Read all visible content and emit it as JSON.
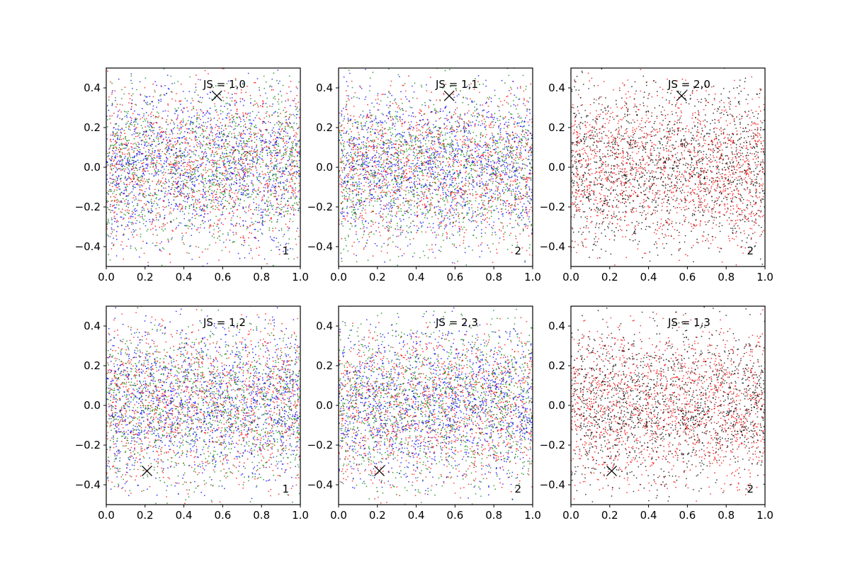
{
  "figure": {
    "background": "#ffffff",
    "colors": {
      "red": "#ff0000",
      "green": "#008000",
      "blue": "#0000ff",
      "black": "#000000"
    }
  },
  "chart_data": [
    {
      "type": "scatter",
      "title": "JS = 1,0",
      "corner_label": "1",
      "xlim": [
        0.0,
        1.0
      ],
      "ylim": [
        -0.5,
        0.5
      ],
      "x_ticks": [
        "0.0",
        "0.2",
        "0.4",
        "0.6",
        "0.8",
        "1.0"
      ],
      "y_ticks": [
        "−0.4",
        "−0.2",
        "0.0",
        "0.2",
        "0.4"
      ],
      "x_tick_values": [
        0.0,
        0.2,
        0.4,
        0.6,
        0.8,
        1.0
      ],
      "y_tick_values": [
        -0.4,
        -0.2,
        0.0,
        0.2,
        0.4
      ],
      "marker_x": {
        "x": 0.57,
        "y": 0.36
      },
      "series_colors": [
        "#ff0000",
        "#008000",
        "#0000ff"
      ],
      "points_per_series": 1300,
      "seed": 11
    },
    {
      "type": "scatter",
      "title": "JS = 1,1",
      "corner_label": "2",
      "xlim": [
        0.0,
        1.0
      ],
      "ylim": [
        -0.5,
        0.5
      ],
      "x_ticks": [
        "0.0",
        "0.2",
        "0.4",
        "0.6",
        "0.8",
        "1.0"
      ],
      "y_ticks": [
        "−0.4",
        "−0.2",
        "0.0",
        "0.2",
        "0.4"
      ],
      "x_tick_values": [
        0.0,
        0.2,
        0.4,
        0.6,
        0.8,
        1.0
      ],
      "y_tick_values": [
        -0.4,
        -0.2,
        0.0,
        0.2,
        0.4
      ],
      "marker_x": {
        "x": 0.57,
        "y": 0.36
      },
      "series_colors": [
        "#ff0000",
        "#008000",
        "#0000ff"
      ],
      "points_per_series": 1300,
      "seed": 23
    },
    {
      "type": "scatter",
      "title": "JS = 2,0",
      "corner_label": "2",
      "xlim": [
        0.0,
        1.0
      ],
      "ylim": [
        -0.5,
        0.5
      ],
      "x_ticks": [
        "0.0",
        "0.2",
        "0.4",
        "0.6",
        "0.8",
        "1.0"
      ],
      "y_ticks": [
        "−0.4",
        "−0.2",
        "0.0",
        "0.2",
        "0.4"
      ],
      "x_tick_values": [
        0.0,
        0.2,
        0.4,
        0.6,
        0.8,
        1.0
      ],
      "y_tick_values": [
        -0.4,
        -0.2,
        0.0,
        0.2,
        0.4
      ],
      "marker_x": {
        "x": 0.57,
        "y": 0.36
      },
      "series_colors": [
        "#ff0000",
        "#000000"
      ],
      "points_per_series": 1500,
      "seed": 37
    },
    {
      "type": "scatter",
      "title": "JS = 1,2",
      "corner_label": "1",
      "xlim": [
        0.0,
        1.0
      ],
      "ylim": [
        -0.5,
        0.5
      ],
      "x_ticks": [
        "0.0",
        "0.2",
        "0.4",
        "0.6",
        "0.8",
        "1.0"
      ],
      "y_ticks": [
        "−0.4",
        "−0.2",
        "0.0",
        "0.2",
        "0.4"
      ],
      "x_tick_values": [
        0.0,
        0.2,
        0.4,
        0.6,
        0.8,
        1.0
      ],
      "y_tick_values": [
        -0.4,
        -0.2,
        0.0,
        0.2,
        0.4
      ],
      "marker_x": {
        "x": 0.21,
        "y": -0.33
      },
      "series_colors": [
        "#ff0000",
        "#008000",
        "#0000ff"
      ],
      "points_per_series": 1300,
      "seed": 41
    },
    {
      "type": "scatter",
      "title": "JS = 2,3",
      "corner_label": "2",
      "xlim": [
        0.0,
        1.0
      ],
      "ylim": [
        -0.5,
        0.5
      ],
      "x_ticks": [
        "0.0",
        "0.2",
        "0.4",
        "0.6",
        "0.8",
        "1.0"
      ],
      "y_ticks": [
        "−0.4",
        "−0.2",
        "0.0",
        "0.2",
        "0.4"
      ],
      "x_tick_values": [
        0.0,
        0.2,
        0.4,
        0.6,
        0.8,
        1.0
      ],
      "y_tick_values": [
        -0.4,
        -0.2,
        0.0,
        0.2,
        0.4
      ],
      "marker_x": {
        "x": 0.21,
        "y": -0.33
      },
      "series_colors": [
        "#ff0000",
        "#008000",
        "#0000ff"
      ],
      "points_per_series": 1300,
      "seed": 53
    },
    {
      "type": "scatter",
      "title": "JS = 1,3",
      "corner_label": "2",
      "xlim": [
        0.0,
        1.0
      ],
      "ylim": [
        -0.5,
        0.5
      ],
      "x_ticks": [
        "0.0",
        "0.2",
        "0.4",
        "0.6",
        "0.8",
        "1.0"
      ],
      "y_ticks": [
        "−0.4",
        "−0.2",
        "0.0",
        "0.2",
        "0.4"
      ],
      "x_tick_values": [
        0.0,
        0.2,
        0.4,
        0.6,
        0.8,
        1.0
      ],
      "y_tick_values": [
        -0.4,
        -0.2,
        0.0,
        0.2,
        0.4
      ],
      "marker_x": {
        "x": 0.21,
        "y": -0.33
      },
      "series_colors": [
        "#ff0000",
        "#000000"
      ],
      "points_per_series": 1500,
      "seed": 67
    }
  ]
}
